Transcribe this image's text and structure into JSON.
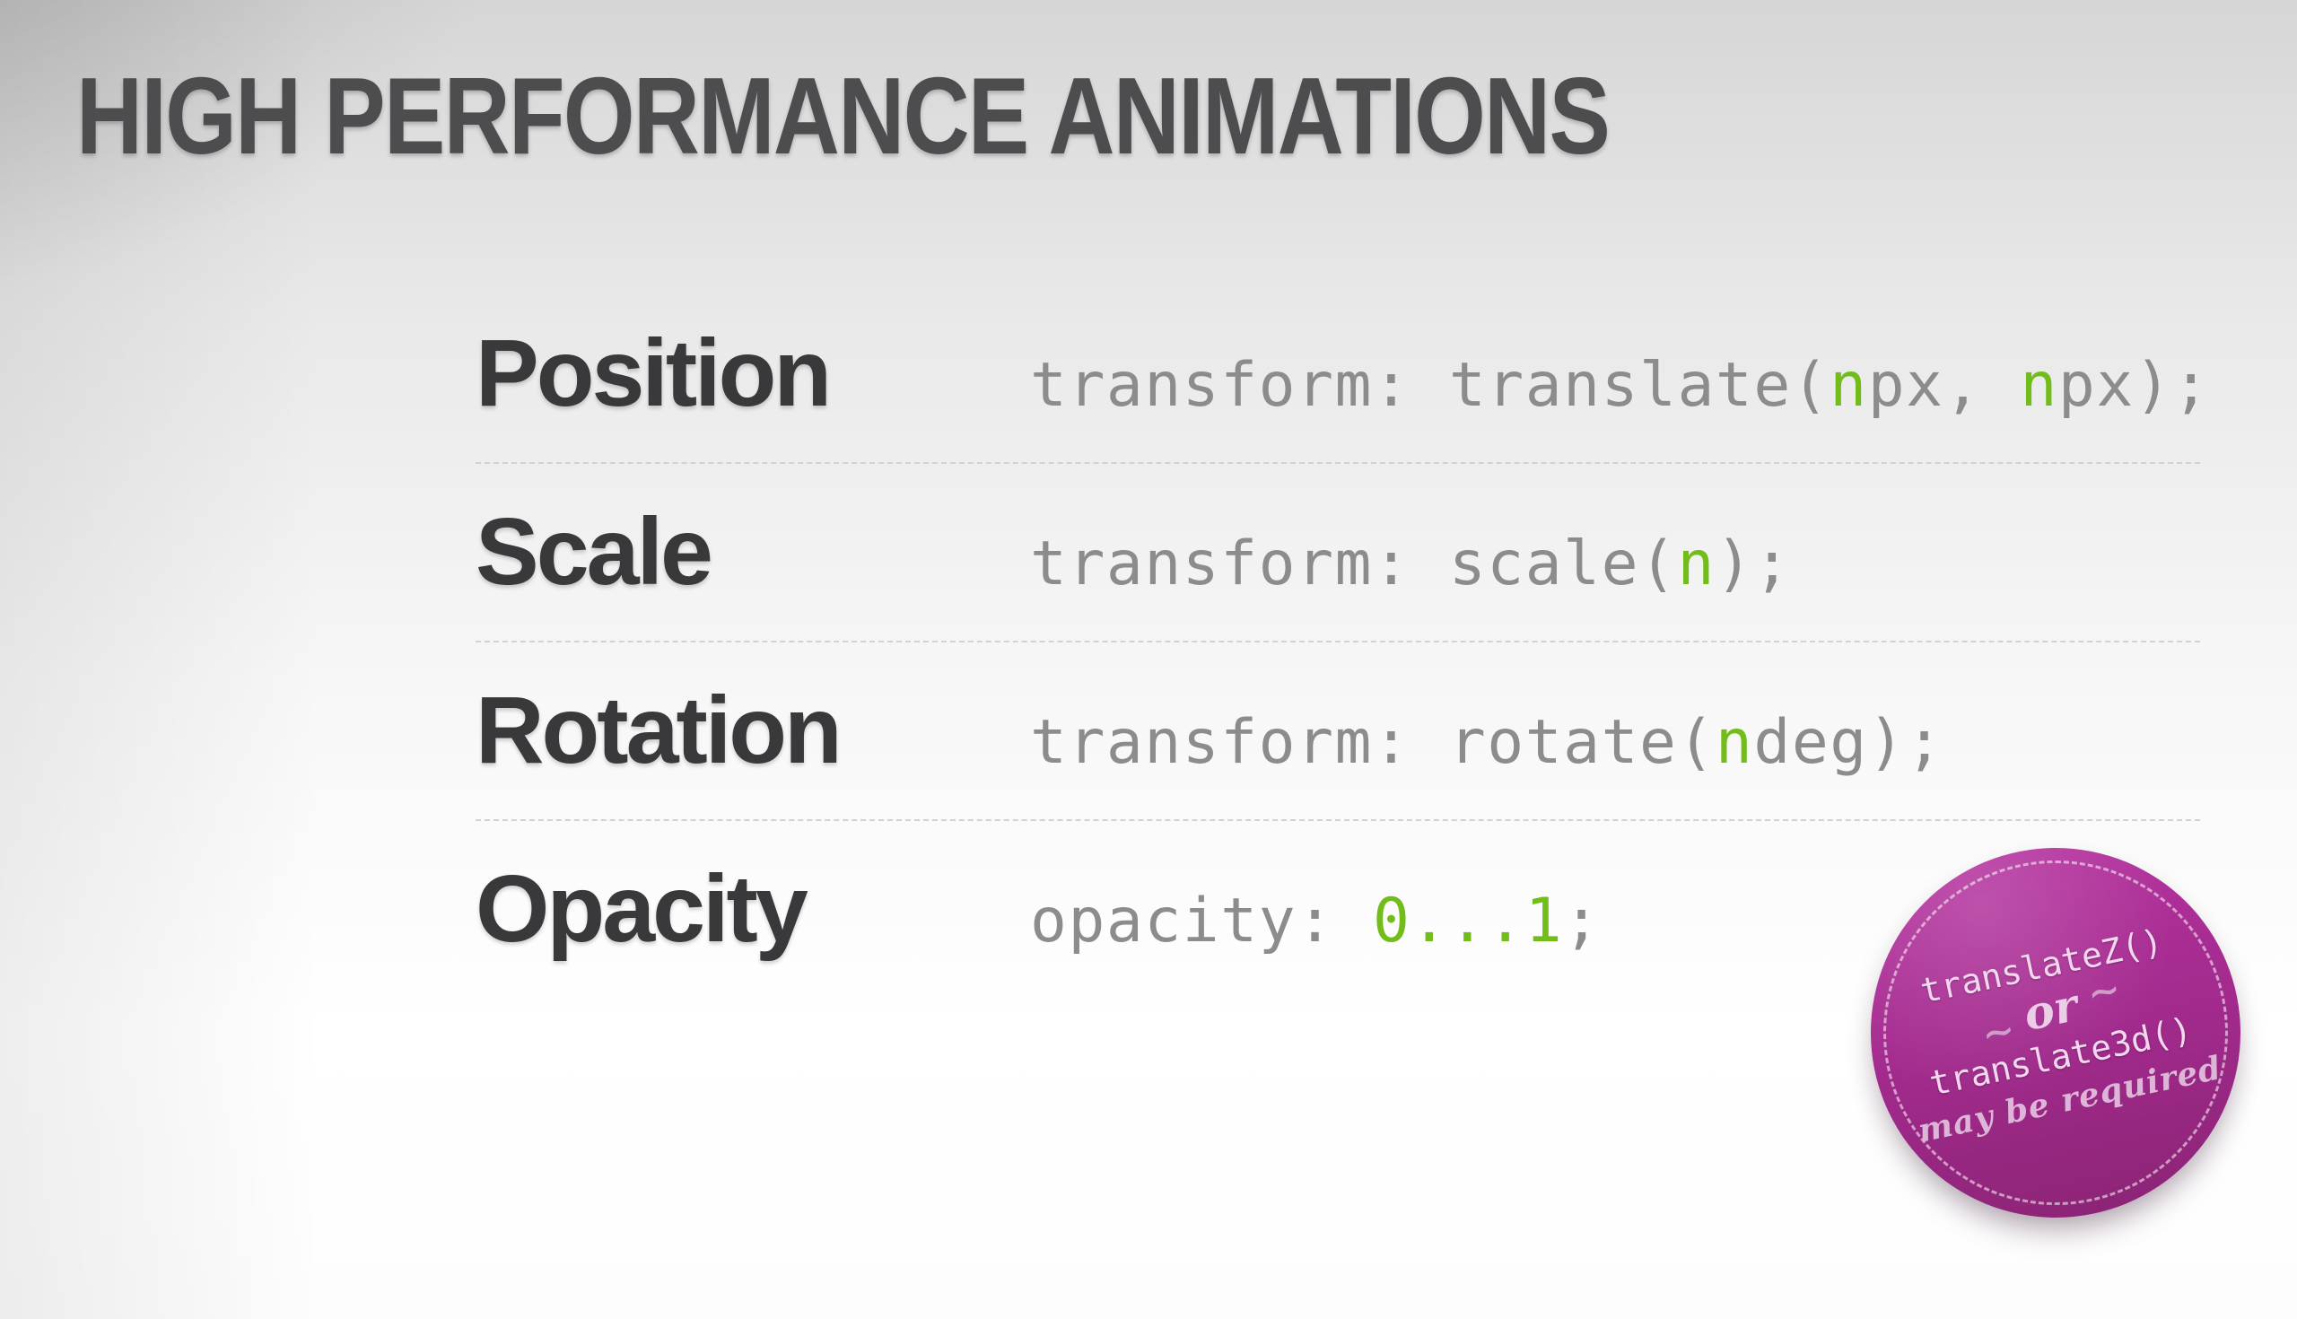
{
  "slide": {
    "title": "HIGH PERFORMANCE ANIMATIONS"
  },
  "table": {
    "rows": [
      {
        "label": "Position",
        "code": [
          {
            "text": "transform: translate(",
            "color": "gray"
          },
          {
            "text": "n",
            "color": "green"
          },
          {
            "text": "px, ",
            "color": "gray"
          },
          {
            "text": "n",
            "color": "green"
          },
          {
            "text": "px);",
            "color": "gray"
          }
        ]
      },
      {
        "label": "Scale",
        "code": [
          {
            "text": "transform: scale(",
            "color": "gray"
          },
          {
            "text": "n",
            "color": "green"
          },
          {
            "text": ");",
            "color": "gray"
          }
        ]
      },
      {
        "label": "Rotation",
        "code": [
          {
            "text": "transform: rotate(",
            "color": "gray"
          },
          {
            "text": "n",
            "color": "green"
          },
          {
            "text": "deg);",
            "color": "gray"
          }
        ]
      },
      {
        "label": "Opacity",
        "code": [
          {
            "text": "opacity: ",
            "color": "gray"
          },
          {
            "text": "0...1",
            "color": "green"
          },
          {
            "text": ";",
            "color": "gray"
          }
        ]
      }
    ]
  },
  "badge": {
    "line1": "translateZ()",
    "tilde": "∼",
    "or_text": "or",
    "line3": "translate3d()",
    "line4": "may be required"
  },
  "colors": {
    "title": "#4d4d4f",
    "label": "#39393b",
    "code-gray": "#8c8c8c",
    "code-green": "#72bd1a",
    "divider": "#d2d2d2",
    "badge-top": "#b5329f",
    "badge-bottom": "#8c2476",
    "badge-text": "#f2d7ee",
    "badge-accent": "#cf9cc9"
  }
}
